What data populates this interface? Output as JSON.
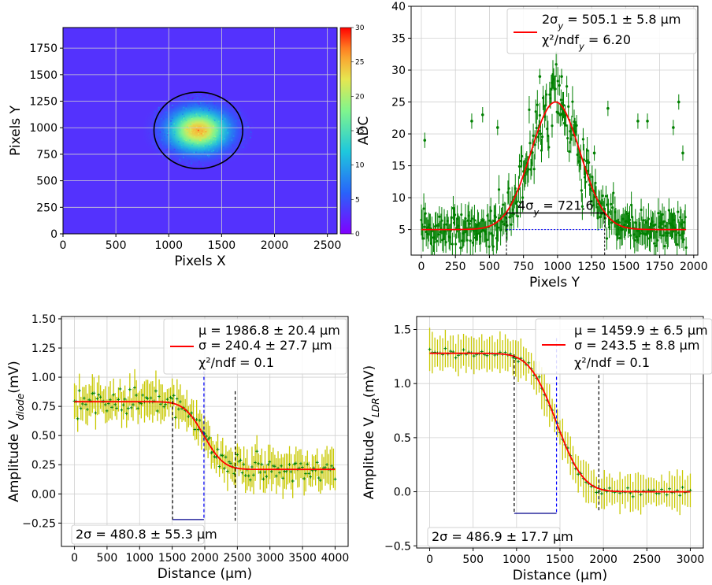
{
  "chart_data": [
    {
      "type": "heatmap",
      "xlabel": "Pixels X",
      "ylabel": "Pixels Y",
      "xlim": [
        0,
        2592
      ],
      "ylim": [
        0,
        1944
      ],
      "xticks": [
        0,
        500,
        1000,
        1500,
        2000,
        2500
      ],
      "yticks": [
        0,
        250,
        500,
        750,
        1000,
        1250,
        1500,
        1750
      ],
      "grid": true,
      "colormap": "rainbow",
      "colorbar": {
        "min": 0,
        "max": 30,
        "ticks": [
          0,
          5,
          10,
          15,
          20,
          25,
          30
        ]
      },
      "background_level": 3,
      "spot": {
        "center_x": 1280,
        "center_y": 975,
        "peak_value": 25,
        "sigma_x": 180,
        "sigma_y": 126
      },
      "fit_ellipse": {
        "center_x": 1280,
        "center_y": 975,
        "semi_axis_x": 420,
        "semi_axis_y": 360,
        "color": "#000000"
      }
    },
    {
      "type": "scatter",
      "xlabel": "Pixels Y",
      "ylabel": "ADC",
      "xlim": [
        -75,
        2030
      ],
      "ylim": [
        1,
        40
      ],
      "xticks": [
        0,
        250,
        500,
        750,
        1000,
        1250,
        1500,
        1750,
        2000
      ],
      "yticks": [
        5,
        10,
        15,
        20,
        25,
        30,
        35,
        40
      ],
      "grid": true,
      "data_color": "#008000",
      "fit": {
        "model": "gaussian",
        "baseline": 5.0,
        "amplitude": 20.0,
        "mean": 985,
        "sigma": 180.4,
        "color": "#ff0000"
      },
      "outliers": [
        [
          25,
          19
        ],
        [
          370,
          22
        ],
        [
          450,
          23
        ],
        [
          560,
          21
        ],
        [
          870,
          29
        ],
        [
          960,
          28
        ],
        [
          1030,
          29
        ],
        [
          1270,
          17
        ],
        [
          1370,
          24
        ],
        [
          1590,
          22
        ],
        [
          1660,
          22
        ],
        [
          1850,
          21
        ],
        [
          1890,
          25
        ],
        [
          1920,
          17
        ]
      ],
      "annotation": {
        "text": "4σ_y = 721.6",
        "level": 7.6,
        "x_low": 625,
        "x_high": 1346,
        "dashed_level": 5.0
      },
      "legend": {
        "position": "upper right",
        "lines": [
          "2σ_y = 505.1 ± 5.8 μm",
          "χ²/ndf_y = 6.20"
        ]
      }
    },
    {
      "type": "scatter",
      "xlabel": "Distance (μm)",
      "ylabel": "Amplitude  V_diode(mV)",
      "xlim": [
        -200,
        4200
      ],
      "ylim": [
        -0.45,
        1.52
      ],
      "xticks": [
        0,
        500,
        1000,
        1500,
        2000,
        2500,
        3000,
        3500,
        4000
      ],
      "yticks": [
        -0.25,
        0.0,
        0.25,
        0.5,
        0.75,
        1.0,
        1.25,
        1.5
      ],
      "grid": true,
      "data_color": "#008000",
      "errorbar_color": "#c8c800",
      "fit": {
        "model": "erf_step",
        "high": 0.79,
        "low": 0.21,
        "mu": 1986.8,
        "sigma": 240.4,
        "color": "#ff0000"
      },
      "markers": {
        "lower": 1506,
        "mu": 1986.8,
        "upper": 2467,
        "bracket_level": -0.22
      },
      "legend": {
        "position": "upper right",
        "lines": [
          "μ  = 1986.8 ± 20.4 μm",
          "σ = 240.4 ± 27.7 μm",
          "χ²/ndf  = 0.1"
        ]
      },
      "annotation": "2σ = 480.8 ± 55.3 μm"
    },
    {
      "type": "scatter",
      "xlabel": "Distance (μm)",
      "ylabel": "Amplitude  V_LDR(mV)",
      "xlim": [
        -150,
        3150
      ],
      "ylim": [
        -0.52,
        1.62
      ],
      "xticks": [
        0,
        500,
        1000,
        1500,
        2000,
        2500,
        3000
      ],
      "yticks": [
        -0.5,
        0.0,
        0.5,
        1.0,
        1.5
      ],
      "grid": true,
      "data_color": "#008000",
      "errorbar_color": "#c8c800",
      "fit": {
        "model": "erf_step",
        "high": 1.28,
        "low": 0.0,
        "mu": 1459.9,
        "sigma": 243.5,
        "color": "#ff0000"
      },
      "markers": {
        "lower": 973,
        "mu": 1459.9,
        "upper": 1947,
        "bracket_level": -0.2
      },
      "legend": {
        "position": "upper right",
        "lines": [
          "μ  = 1459.9 ± 6.5 μm",
          "σ = 243.5 ± 8.8 μm",
          "χ²/ndf  = 0.1"
        ]
      },
      "annotation": "2σ = 486.9 ± 17.7 μm"
    }
  ]
}
